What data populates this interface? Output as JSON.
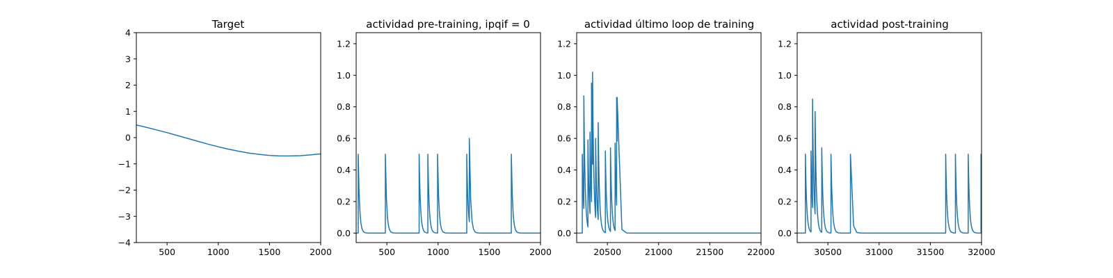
{
  "chart_data": [
    {
      "type": "line",
      "title": "Target",
      "xlim": [
        200,
        2000
      ],
      "ylim": [
        -4,
        4
      ],
      "xticks": [
        500,
        1000,
        1500,
        2000
      ],
      "yticks": [
        -4,
        -3,
        -2,
        -1,
        0,
        1,
        2,
        3,
        4
      ],
      "tick_decimals": 0,
      "line_color": "#1f77b4",
      "series": [
        {
          "x": [
            200,
            300,
            400,
            500,
            600,
            700,
            800,
            900,
            1000,
            1100,
            1200,
            1300,
            1400,
            1500,
            1600,
            1700,
            1800,
            1900,
            2000
          ],
          "y": [
            0.48,
            0.39,
            0.29,
            0.19,
            0.08,
            -0.03,
            -0.14,
            -0.25,
            -0.35,
            -0.44,
            -0.52,
            -0.59,
            -0.64,
            -0.68,
            -0.7,
            -0.7,
            -0.69,
            -0.66,
            -0.62
          ]
        }
      ]
    },
    {
      "type": "line",
      "title": "actividad pre-training, ipqif = 0",
      "xlim": [
        200,
        2000
      ],
      "ylim": [
        -0.06,
        1.27
      ],
      "xticks": [
        500,
        1000,
        1500,
        2000
      ],
      "yticks": [
        0.0,
        0.2,
        0.4,
        0.6,
        0.8,
        1.0,
        1.2
      ],
      "tick_decimals": 1,
      "line_color": "#1f77b4",
      "baseline_start": 200,
      "spikes": [
        [
          220,
          0.5
        ],
        [
          485,
          0.5
        ],
        [
          815,
          0.5
        ],
        [
          900,
          0.5
        ],
        [
          995,
          0.5
        ],
        [
          1280,
          0.5
        ],
        [
          1305,
          0.6
        ],
        [
          1715,
          0.5
        ]
      ]
    },
    {
      "type": "line",
      "title": "actividad último loop de training",
      "xlim": [
        20200,
        22000
      ],
      "ylim": [
        -0.06,
        1.27
      ],
      "xticks": [
        20500,
        21000,
        21500,
        22000
      ],
      "yticks": [
        0.0,
        0.2,
        0.4,
        0.6,
        0.8,
        1.0,
        1.2
      ],
      "tick_decimals": 1,
      "line_color": "#1f77b4",
      "baseline_start": 20200,
      "spikes": [
        [
          20255,
          0.5
        ],
        [
          20270,
          0.87
        ],
        [
          20310,
          0.59
        ],
        [
          20330,
          0.64
        ],
        [
          20345,
          0.95
        ],
        [
          20355,
          1.02
        ],
        [
          20385,
          0.6
        ],
        [
          20410,
          0.7
        ],
        [
          20480,
          0.52
        ],
        [
          20530,
          0.54
        ],
        [
          20575,
          0.57
        ],
        [
          20590,
          0.86
        ],
        [
          20595,
          0.86
        ]
      ]
    },
    {
      "type": "line",
      "title": "actividad post-training",
      "xlim": [
        30200,
        32000
      ],
      "ylim": [
        -0.06,
        1.27
      ],
      "xticks": [
        30500,
        31000,
        31500,
        32000
      ],
      "yticks": [
        0.0,
        0.2,
        0.4,
        0.6,
        0.8,
        1.0,
        1.2
      ],
      "tick_decimals": 1,
      "line_color": "#1f77b4",
      "baseline_start": 30200,
      "spikes": [
        [
          30280,
          0.5
        ],
        [
          30335,
          0.52
        ],
        [
          30350,
          0.85
        ],
        [
          30375,
          0.77
        ],
        [
          30440,
          0.54
        ],
        [
          30530,
          0.5
        ],
        [
          30720,
          0.5
        ],
        [
          31650,
          0.5
        ],
        [
          31745,
          0.5
        ],
        [
          31870,
          0.5
        ],
        [
          31995,
          0.5
        ]
      ]
    }
  ]
}
